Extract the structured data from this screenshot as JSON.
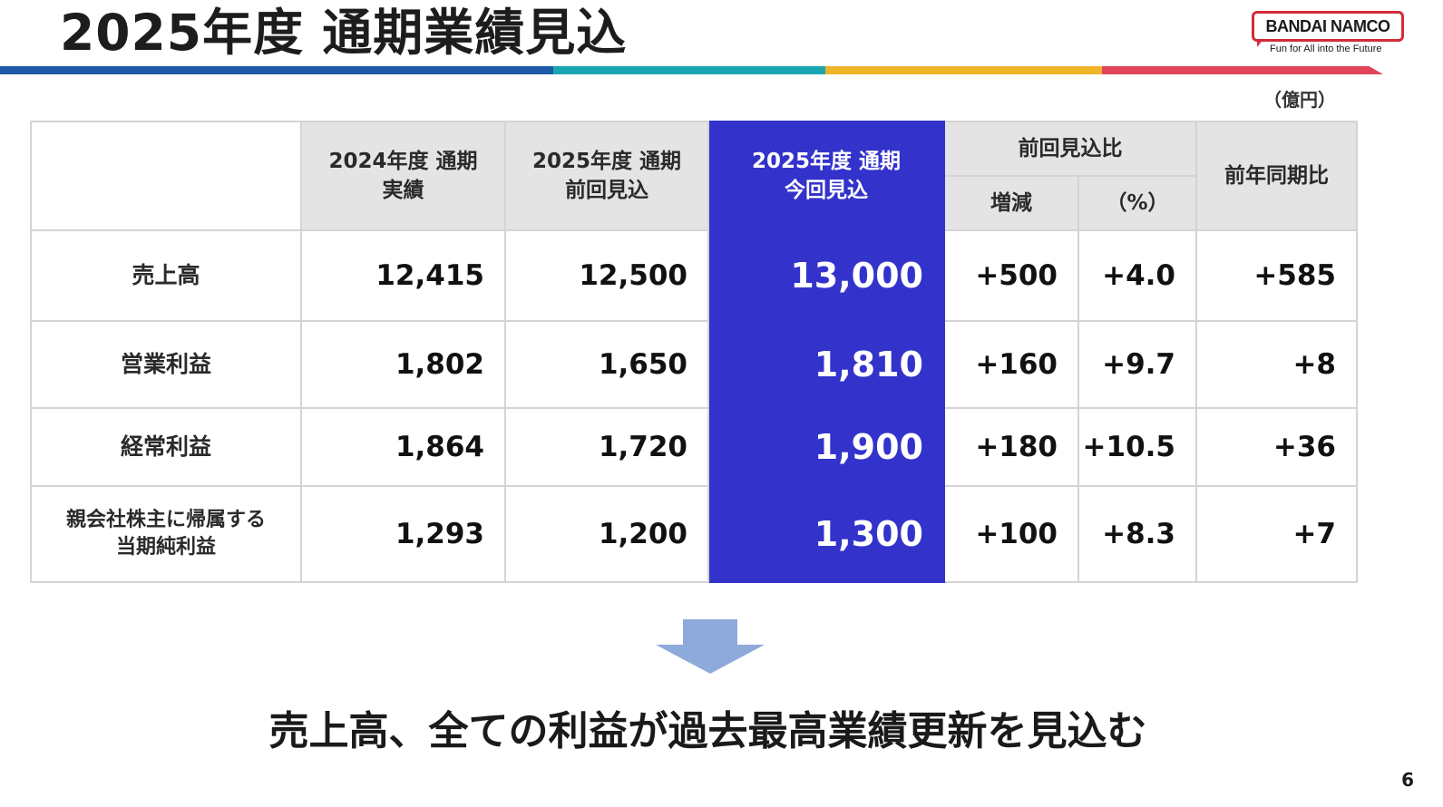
{
  "title": "2025年度 通期業績見込",
  "logo": {
    "brand": "BANDAI NAMCO",
    "tagline": "Fun for All into the Future",
    "color": "#d52b3b"
  },
  "accent_colors": {
    "bar": [
      "#1f5aa6",
      "#1aa7b4",
      "#f0b429",
      "#e0455b"
    ],
    "current_column": "#3333cc"
  },
  "unit_label": "（億円）",
  "table": {
    "headers": {
      "fy2024_line1": "2024年度 通期",
      "fy2024_line2": "実績",
      "prev_forecast_line1": "2025年度 通期",
      "prev_forecast_line2": "前回見込",
      "current_forecast_line1": "2025年度 通期",
      "current_forecast_line2": "今回見込",
      "vs_prev_group": "前回見込比",
      "vs_prev_change": "増減",
      "vs_prev_pct": "（%）",
      "yoy": "前年同期比"
    },
    "rows": [
      {
        "label": "売上高",
        "label_line2": "",
        "fy2024": "12,415",
        "prev": "12,500",
        "current": "13,000",
        "change": "+500",
        "pct": "+4.0",
        "yoy": "+585"
      },
      {
        "label": "営業利益",
        "label_line2": "",
        "fy2024": "1,802",
        "prev": "1,650",
        "current": "1,810",
        "change": "+160",
        "pct": "+9.7",
        "yoy": "+8"
      },
      {
        "label": "経常利益",
        "label_line2": "",
        "fy2024": "1,864",
        "prev": "1,720",
        "current": "1,900",
        "change": "+180",
        "pct": "+10.5",
        "yoy": "+36"
      },
      {
        "label": "親会社株主に帰属する",
        "label_line2": "当期純利益",
        "fy2024": "1,293",
        "prev": "1,200",
        "current": "1,300",
        "change": "+100",
        "pct": "+8.3",
        "yoy": "+7"
      }
    ]
  },
  "arrow_color": "#8eaadb",
  "conclusion": "売上高、全ての利益が過去最高業績更新を見込む",
  "page_number": "6"
}
